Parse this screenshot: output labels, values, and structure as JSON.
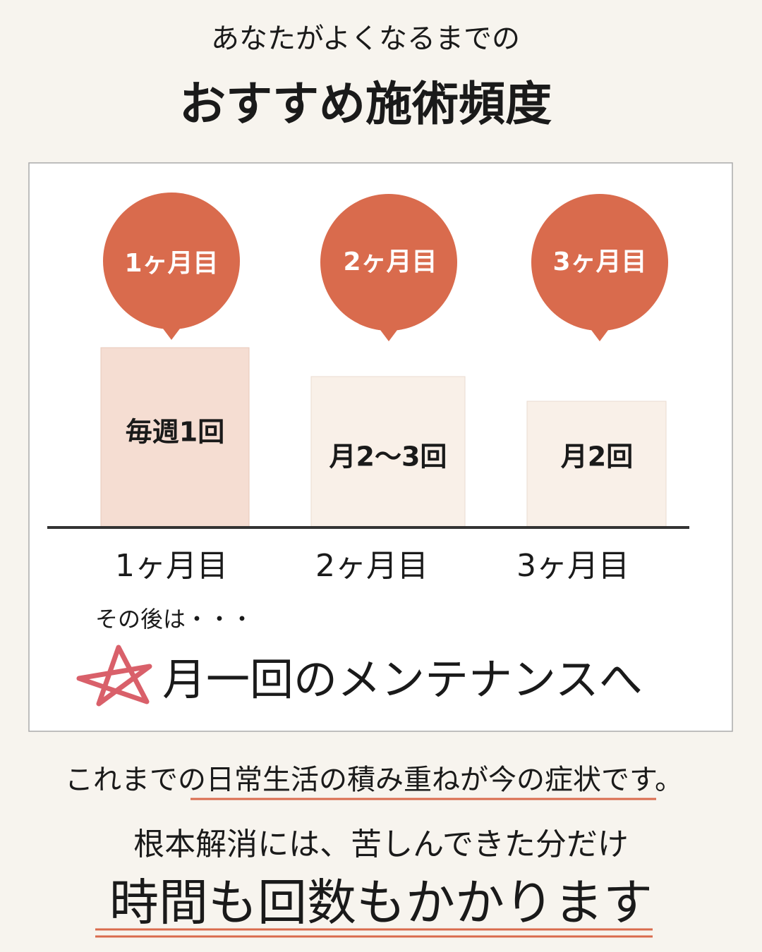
{
  "header": {
    "subtitle": "あなたがよくなるまでの",
    "title": "おすすめ施術頻度"
  },
  "stages": [
    {
      "month": "1ヶ月目",
      "frequency": "毎週1回"
    },
    {
      "month": "2ヶ月目",
      "frequency": "月2〜3回"
    },
    {
      "month": "3ヶ月目",
      "frequency": "月2回"
    }
  ],
  "after": {
    "lead": "その後は・・・",
    "text": "月一回のメンテナンスへ"
  },
  "footer": {
    "line1": "これまでの日常生活の積み重ねが今の症状です。",
    "line2": "根本解消には、苦しんできた分だけ",
    "line3": "時間も回数もかかります"
  }
}
